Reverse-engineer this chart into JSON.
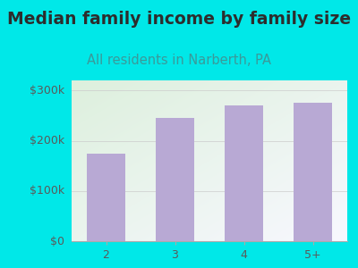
{
  "title": "Median family income by family size",
  "subtitle": "All residents in Narberth, PA",
  "categories": [
    "2",
    "3",
    "4",
    "5+"
  ],
  "values": [
    175000,
    245000,
    270000,
    275000
  ],
  "bar_color": "#b8a9d4",
  "title_color": "#2d2d2d",
  "subtitle_color": "#3a9a9a",
  "outer_bg": "#00e8e8",
  "plot_bg_topleft": "#ddf0dd",
  "plot_bg_bottomright": "#f8f8ff",
  "ytick_color": "#5a5a5a",
  "xtick_color": "#5a5a5a",
  "ylim": [
    0,
    320000
  ],
  "yticks": [
    0,
    100000,
    200000,
    300000
  ],
  "ytick_labels": [
    "$0",
    "$100k",
    "$200k",
    "$300k"
  ],
  "title_fontsize": 13.5,
  "subtitle_fontsize": 10.5,
  "tick_fontsize": 9
}
